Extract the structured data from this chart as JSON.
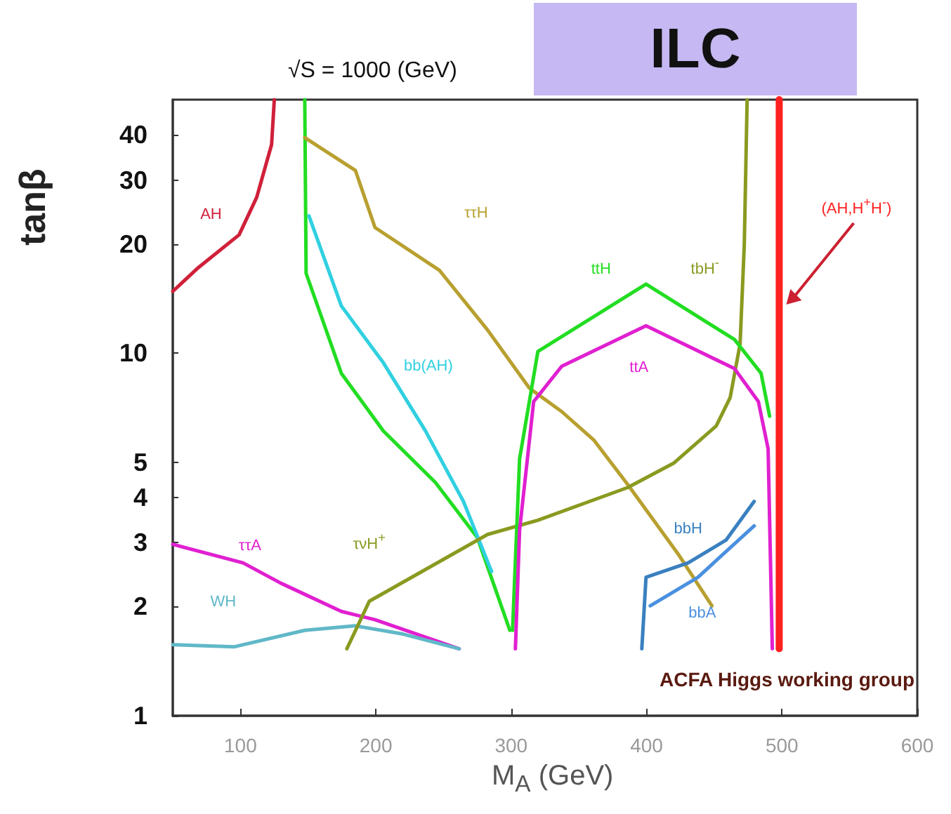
{
  "chart_data": {
    "type": "line",
    "title": "√S = 1000 (GeV)",
    "xlabel": "M$_{A}$ (GeV)",
    "ylabel": "tanβ",
    "xlim": [
      50,
      600
    ],
    "xticks": [
      100,
      200,
      300,
      400,
      500,
      600
    ],
    "ylim": [
      1,
      50
    ],
    "yticks": [
      1,
      2,
      3,
      4,
      5,
      10,
      20,
      30,
      40
    ],
    "log": "y",
    "grid": false,
    "legend": false,
    "marker": "none",
    "line_style": "solid",
    "series": [
      {
        "name": "AH",
        "color": "#d0203a",
        "x": [
          50,
          68,
          99,
          112,
          123,
          125
        ],
        "values": [
          14.8,
          17.1,
          21.2,
          26.9,
          37.6,
          50
        ]
      },
      {
        "color": "#22dd22",
        "x": [
          147.5,
          148.5,
          174.5,
          205.6,
          244,
          275,
          299
        ],
        "values": [
          50,
          16.6,
          8.8,
          6.1,
          4.4,
          3.1,
          1.72
        ]
      },
      {
        "name": "bb(AH)",
        "color": "#30d0e0",
        "x": [
          150.6,
          174.5,
          205.6,
          236.7,
          264.7,
          285.5
        ],
        "values": [
          23.9,
          13.5,
          9.4,
          6.1,
          3.9,
          2.5
        ]
      },
      {
        "name": "ττH",
        "color": "#b8a030",
        "x": [
          147.5,
          184.9,
          199.4,
          247.1,
          282.4,
          313.5,
          337.3,
          361.2,
          386.1,
          423.4,
          448.3
        ],
        "values": [
          39.3,
          31.9,
          22.2,
          16.9,
          11.6,
          8.0,
          6.9,
          5.75,
          4.34,
          2.79,
          2.01
        ]
      },
      {
        "name": "ττA",
        "color": "#e020d0",
        "x": [
          50,
          101.9,
          129.9,
          174.5,
          199.4,
          261.6
        ],
        "values": [
          2.97,
          2.64,
          2.32,
          1.94,
          1.84,
          1.53
        ]
      },
      {
        "name": "WH",
        "color": "#60b8c8",
        "x": [
          50,
          95.6,
          147.5,
          184.9,
          220.1,
          261.6
        ],
        "values": [
          1.57,
          1.55,
          1.72,
          1.77,
          1.68,
          1.53
        ]
      },
      {
        "name": "τνH$^{+}$",
        "color": "#8a9a20",
        "x": [
          178.6,
          195.2,
          282.4,
          319.7,
          386.1,
          420.3,
          451.5,
          461.8,
          469.1,
          472.2,
          474.3
        ],
        "values": [
          1.53,
          2.07,
          3.16,
          3.46,
          4.26,
          4.98,
          6.3,
          7.55,
          10.6,
          19.9,
          50
        ]
      },
      {
        "name": "ttH",
        "color": "#22dd22",
        "x": [
          301,
          306.2,
          319.7,
          399.6,
          465,
          484.6,
          490.9
        ],
        "values": [
          1.72,
          5.11,
          10.1,
          15.5,
          10.9,
          8.8,
          6.7
        ]
      },
      {
        "name": "ttA",
        "color": "#e020d0",
        "x": [
          303.1,
          306.2,
          316.6,
          337.3,
          399.6,
          465,
          482.6,
          489.8,
          492.9
        ],
        "values": [
          1.53,
          3.25,
          7.35,
          9.2,
          11.9,
          9.06,
          7.35,
          5.45,
          1.53
        ]
      },
      {
        "name": "(AH,H$^{+}$H$^{-}$)",
        "color": "#ff2020",
        "x": [
          498,
          498
        ],
        "values": [
          1.53,
          50
        ]
      },
      {
        "name": "bbH",
        "color": "#3a80c0",
        "x": [
          396.5,
          399.6,
          430.7,
          458.7,
          479.5
        ],
        "values": [
          1.53,
          2.41,
          2.64,
          3.05,
          3.9
        ]
      },
      {
        "name": "bbA",
        "color": "#4a90e0",
        "x": [
          402.7,
          438,
          479.5
        ],
        "values": [
          2.01,
          2.41,
          3.34
        ]
      }
    ],
    "annotations": [
      "ILC",
      "ACFA Higgs working group",
      "tbH$^{-}$"
    ]
  }
}
